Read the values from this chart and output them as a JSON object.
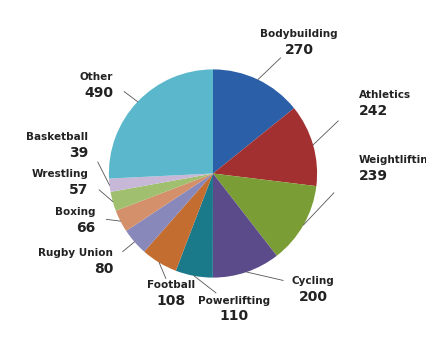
{
  "labels": [
    "Bodybuilding",
    "Athletics",
    "Weightlifting",
    "Cycling",
    "Powerlifting",
    "Football",
    "Rugby Union",
    "Boxing",
    "Wrestling",
    "Basketball",
    "Other"
  ],
  "values": [
    270,
    242,
    239,
    200,
    110,
    108,
    80,
    66,
    57,
    39,
    490
  ],
  "colors": [
    "#2b5fa8",
    "#a33030",
    "#7a9e35",
    "#5b4b8a",
    "#1a7a8a",
    "#c46d30",
    "#8888bb",
    "#d4906a",
    "#a0c070",
    "#c8b8d8",
    "#5bb8cc"
  ],
  "label_fontsize": 7.5,
  "value_fontsize": 10,
  "background_color": "#ffffff",
  "label_positions": {
    "Bodybuilding": [
      0.62,
      0.96,
      "center"
    ],
    "Athletics": [
      1.05,
      0.52,
      "left"
    ],
    "Weightlifting": [
      1.05,
      0.05,
      "left"
    ],
    "Cycling": [
      0.72,
      -0.82,
      "center"
    ],
    "Powerlifting": [
      0.15,
      -0.96,
      "center"
    ],
    "Football": [
      -0.3,
      -0.85,
      "center"
    ],
    "Rugby Union": [
      -0.72,
      -0.62,
      "right"
    ],
    "Boxing": [
      -0.85,
      -0.32,
      "right"
    ],
    "Wrestling": [
      -0.9,
      -0.05,
      "right"
    ],
    "Basketball": [
      -0.9,
      0.22,
      "right"
    ],
    "Other": [
      -0.72,
      0.65,
      "right"
    ]
  }
}
